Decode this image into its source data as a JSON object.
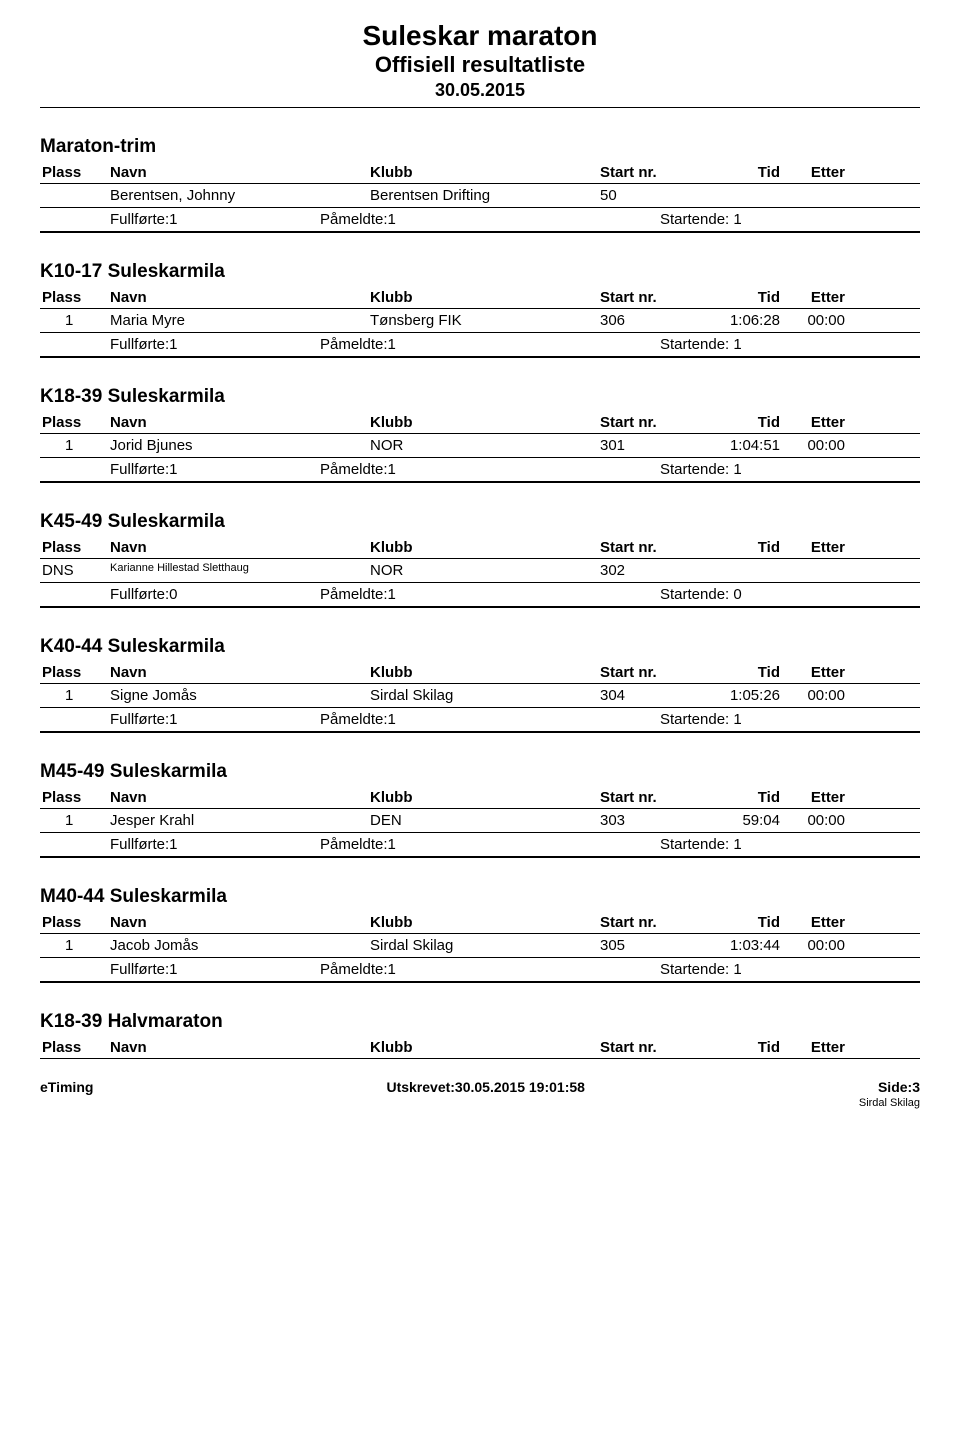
{
  "header": {
    "title": "Suleskar maraton",
    "subtitle": "Offisiell resultatliste",
    "date": "30.05.2015"
  },
  "columns": {
    "plass": "Plass",
    "navn": "Navn",
    "klubb": "Klubb",
    "startnr": "Start nr.",
    "tid": "Tid",
    "etter": "Etter"
  },
  "summary_labels": {
    "fullforte": "Fullførte:",
    "pameldte": "Påmeldte:",
    "startende": "Startende:"
  },
  "sections": [
    {
      "title": "Maraton-trim",
      "rows": [
        {
          "plass": "",
          "navn": "Berentsen, Johnny",
          "klubb": "Berentsen Drifting",
          "startnr": "50",
          "tid": "",
          "etter": "",
          "small": false
        }
      ],
      "fullforte": "1",
      "pameldte": "1",
      "startende": "1"
    },
    {
      "title": "K10-17 Suleskarmila",
      "rows": [
        {
          "plass": "1",
          "navn": "Maria  Myre",
          "klubb": "Tønsberg FIK",
          "startnr": "306",
          "tid": "1:06:28",
          "etter": "00:00",
          "small": false
        }
      ],
      "fullforte": "1",
      "pameldte": "1",
      "startende": "1"
    },
    {
      "title": "K18-39 Suleskarmila",
      "rows": [
        {
          "plass": "1",
          "navn": "Jorid Bjunes",
          "klubb": "NOR",
          "startnr": "301",
          "tid": "1:04:51",
          "etter": "00:00",
          "small": false
        }
      ],
      "fullforte": "1",
      "pameldte": "1",
      "startende": "1"
    },
    {
      "title": "K45-49 Suleskarmila",
      "rows": [
        {
          "plass": "DNS",
          "navn": "Karianne Hillestad Sletthaug",
          "klubb": "NOR",
          "startnr": "302",
          "tid": "",
          "etter": "",
          "small": true
        }
      ],
      "fullforte": "0",
      "pameldte": "1",
      "startende": "0"
    },
    {
      "title": "K40-44 Suleskarmila",
      "rows": [
        {
          "plass": "1",
          "navn": "Signe Jomås",
          "klubb": "Sirdal Skilag",
          "startnr": "304",
          "tid": "1:05:26",
          "etter": "00:00",
          "small": false
        }
      ],
      "fullforte": "1",
      "pameldte": "1",
      "startende": "1"
    },
    {
      "title": "M45-49 Suleskarmila",
      "rows": [
        {
          "plass": "1",
          "navn": "Jesper Krahl",
          "klubb": "DEN",
          "startnr": "303",
          "tid": "59:04",
          "etter": "00:00",
          "small": false
        }
      ],
      "fullforte": "1",
      "pameldte": "1",
      "startende": "1"
    },
    {
      "title": "M40-44 Suleskarmila",
      "rows": [
        {
          "plass": "1",
          "navn": "Jacob Jomås",
          "klubb": "Sirdal Skilag",
          "startnr": "305",
          "tid": "1:03:44",
          "etter": "00:00",
          "small": false
        }
      ],
      "fullforte": "1",
      "pameldte": "1",
      "startende": "1"
    },
    {
      "title": "K18-39 Halvmaraton",
      "rows": [],
      "fullforte": null,
      "pameldte": null,
      "startende": null
    }
  ],
  "footer": {
    "left": "eTiming",
    "center": "Utskrevet:30.05.2015 19:01:58",
    "right": "Side:3",
    "partial": "Sirdal Skilag"
  }
}
